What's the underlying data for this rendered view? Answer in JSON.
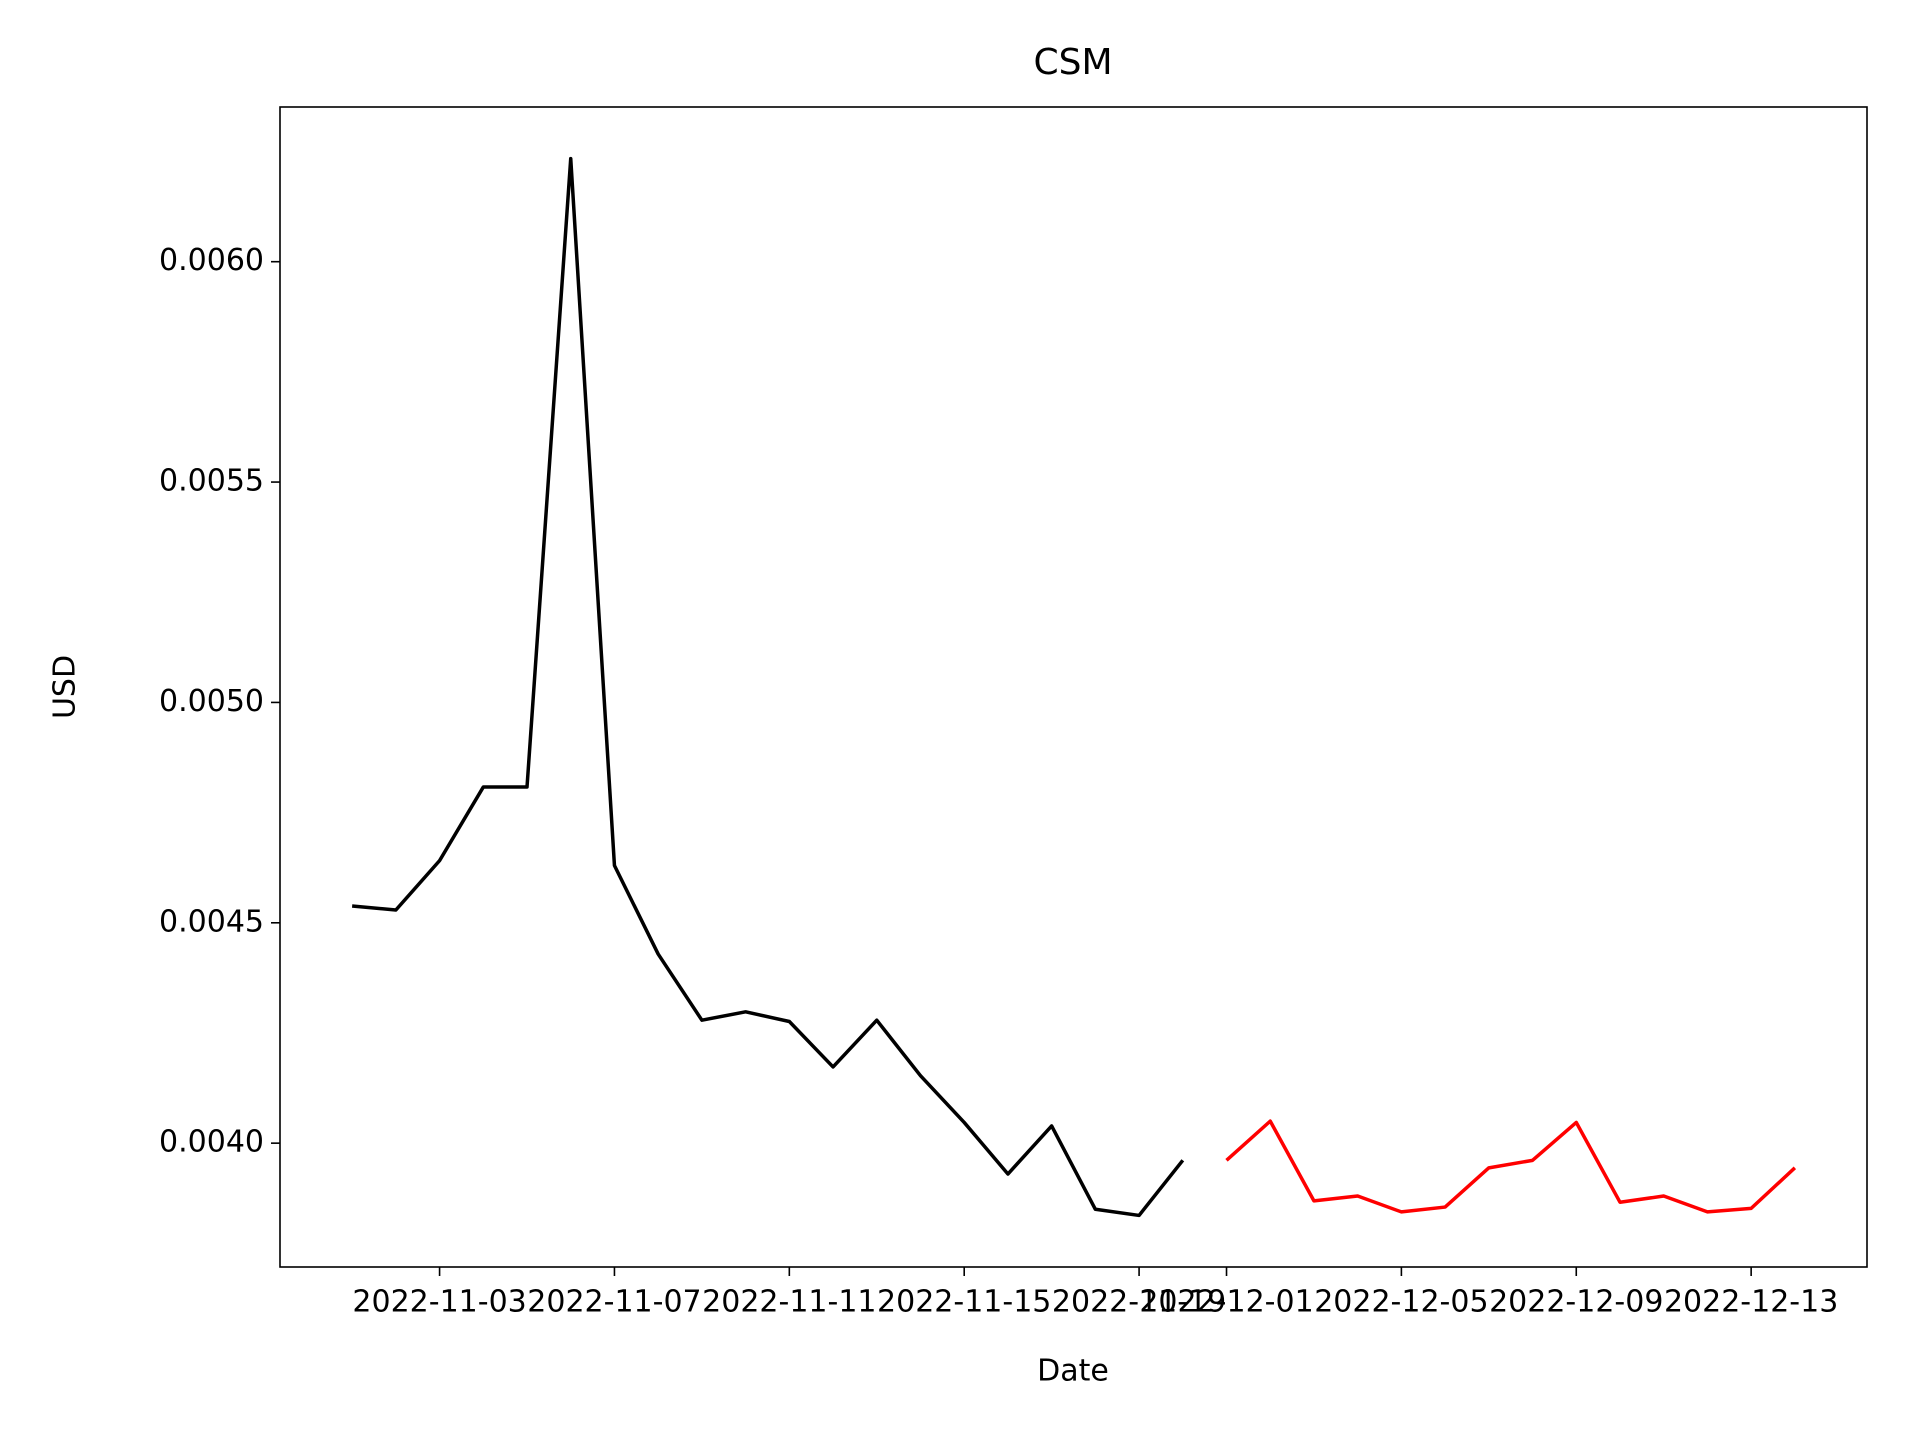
{
  "chart_data": {
    "type": "line",
    "title": "CSM",
    "xlabel": "Date",
    "ylabel": "USD",
    "series": [
      {
        "color": "#000000",
        "x": [
          "2022-11-01",
          "2022-11-02",
          "2022-11-03",
          "2022-11-04",
          "2022-11-05",
          "2022-11-06",
          "2022-11-07",
          "2022-11-08",
          "2022-11-09",
          "2022-11-10",
          "2022-11-11",
          "2022-11-12",
          "2022-11-13",
          "2022-11-14",
          "2022-11-15",
          "2022-11-16",
          "2022-11-17",
          "2022-11-18",
          "2022-11-19",
          "2022-11-20"
        ],
        "values": [
          0.004538,
          0.004529,
          0.004641,
          0.004808,
          0.004808,
          0.006234,
          0.00463,
          0.004429,
          0.004279,
          0.004298,
          0.004276,
          0.004173,
          0.004279,
          0.004153,
          0.004047,
          0.00393,
          0.004039,
          0.00385,
          0.003836,
          0.003961
        ]
      },
      {
        "color": "#ff0000",
        "x": [
          "2022-12-01",
          "2022-12-02",
          "2022-12-03",
          "2022-12-04",
          "2022-12-05",
          "2022-12-06",
          "2022-12-07",
          "2022-12-08",
          "2022-12-09",
          "2022-12-10",
          "2022-12-11",
          "2022-12-12",
          "2022-12-13",
          "2022-12-14"
        ],
        "values": [
          0.003961,
          0.00405,
          0.003869,
          0.00388,
          0.003844,
          0.003855,
          0.003944,
          0.003961,
          0.004047,
          0.003866,
          0.00388,
          0.003844,
          0.003852,
          0.003944
        ]
      }
    ],
    "xticks": [
      "2022-11-03",
      "2022-11-07",
      "2022-11-11",
      "2022-11-15",
      "2022-11-19",
      "2022-12-01",
      "2022-12-05",
      "2022-12-09",
      "2022-12-13"
    ],
    "ylim": [
      0.003719,
      0.006351
    ],
    "yticks": [
      {
        "value": 0.004,
        "label": "0.0040"
      },
      {
        "value": 0.0045,
        "label": "0.0045"
      },
      {
        "value": 0.005,
        "label": "0.0050"
      },
      {
        "value": 0.0055,
        "label": "0.0055"
      },
      {
        "value": 0.006,
        "label": "0.0060"
      }
    ],
    "grid": false
  }
}
